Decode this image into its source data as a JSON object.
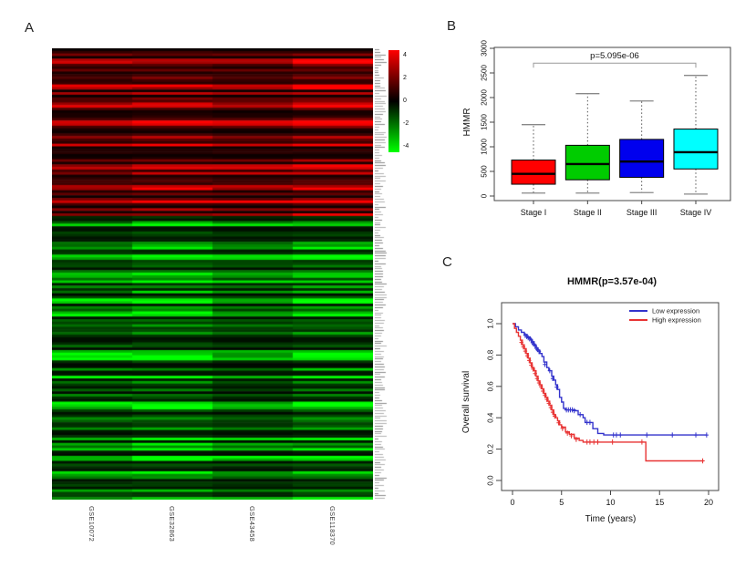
{
  "panels": {
    "a": "A",
    "b": "B",
    "c": "C"
  },
  "chart_data": [
    {
      "type": "heatmap",
      "panel": "A",
      "columns": [
        "GSE10072",
        "GSE32863",
        "GSE43458",
        "GSE118370"
      ],
      "colorscale": {
        "min": -4,
        "max": 4,
        "min_color": "#00ff00",
        "mid_color": "#000000",
        "max_color": "#ff0000",
        "ticks": [
          "4",
          "2",
          "0",
          "-2",
          "-4"
        ]
      },
      "row_labels_note": "illegible",
      "seed": 20231007,
      "blocks": [
        {
          "direction": "up",
          "rows": 65,
          "column_brightness": [
            0.82,
            1.02,
            0.88,
            1.18
          ]
        },
        {
          "direction": "down",
          "rows": 110,
          "column_brightness": [
            0.95,
            1.18,
            0.88,
            1.12
          ]
        }
      ]
    },
    {
      "type": "box",
      "panel": "B",
      "ylabel": "HMMR",
      "ylim": [
        0,
        3000
      ],
      "yticks": [
        0,
        500,
        1000,
        1500,
        2000,
        2500,
        3000
      ],
      "categories": [
        "Stage I",
        "Stage II",
        "Stage III",
        "Stage IV"
      ],
      "boxes": [
        {
          "category": "Stage I",
          "color": "#ff0000",
          "whisker_low": 60,
          "q1": 240,
          "median": 450,
          "q3": 730,
          "whisker_high": 1450
        },
        {
          "category": "Stage II",
          "color": "#00cc00",
          "whisker_low": 60,
          "q1": 330,
          "median": 650,
          "q3": 1030,
          "whisker_high": 2080
        },
        {
          "category": "Stage III",
          "color": "#0000ee",
          "whisker_low": 70,
          "q1": 380,
          "median": 700,
          "q3": 1150,
          "whisker_high": 1930
        },
        {
          "category": "Stage IV",
          "color": "#00ffff",
          "whisker_low": 40,
          "q1": 550,
          "median": 890,
          "q3": 1360,
          "whisker_high": 2450
        }
      ],
      "annotation": {
        "text": "p=5.095e-06",
        "bar_y": 2700,
        "from_index": 0,
        "to_index": 3
      }
    },
    {
      "type": "line",
      "subtype": "kaplan_meier",
      "panel": "C",
      "title": "HMMR(p=3.57e-04)",
      "xlabel": "Time (years)",
      "ylabel": "Overall survival",
      "xlim": [
        0,
        20
      ],
      "ylim": [
        0,
        1
      ],
      "xticks": [
        0,
        5,
        10,
        15,
        20
      ],
      "yticks": [
        "0.0",
        "0.2",
        "0.4",
        "0.6",
        "0.8",
        "1.0"
      ],
      "legend": [
        {
          "label": "Low expression",
          "color": "#3333cc"
        },
        {
          "label": "High expression",
          "color": "#e83333"
        }
      ],
      "series": [
        {
          "name": "Low expression",
          "color": "#3333cc",
          "steps": [
            [
              0,
              1.0
            ],
            [
              0.3,
              0.98
            ],
            [
              0.6,
              0.96
            ],
            [
              0.9,
              0.945
            ],
            [
              1.2,
              0.93
            ],
            [
              1.5,
              0.915
            ],
            [
              1.8,
              0.9
            ],
            [
              2.0,
              0.885
            ],
            [
              2.2,
              0.865
            ],
            [
              2.4,
              0.845
            ],
            [
              2.6,
              0.83
            ],
            [
              2.8,
              0.81
            ],
            [
              3.0,
              0.79
            ],
            [
              3.2,
              0.755
            ],
            [
              3.5,
              0.72
            ],
            [
              3.7,
              0.7
            ],
            [
              4.0,
              0.665
            ],
            [
              4.2,
              0.64
            ],
            [
              4.4,
              0.61
            ],
            [
              4.6,
              0.58
            ],
            [
              4.8,
              0.53
            ],
            [
              5.0,
              0.5
            ],
            [
              5.2,
              0.46
            ],
            [
              5.4,
              0.45
            ],
            [
              6.4,
              0.445
            ],
            [
              6.7,
              0.42
            ],
            [
              7.2,
              0.4
            ],
            [
              7.4,
              0.37
            ],
            [
              8.2,
              0.33
            ],
            [
              8.7,
              0.3
            ],
            [
              9.3,
              0.29
            ],
            [
              19.8,
              0.29
            ]
          ],
          "censors": [
            [
              1.3,
              0.925
            ],
            [
              1.45,
              0.918
            ],
            [
              1.6,
              0.91
            ],
            [
              1.75,
              0.903
            ],
            [
              1.9,
              0.895
            ],
            [
              2.05,
              0.878
            ],
            [
              2.15,
              0.87
            ],
            [
              2.3,
              0.858
            ],
            [
              2.45,
              0.842
            ],
            [
              2.55,
              0.835
            ],
            [
              2.7,
              0.822
            ],
            [
              3.3,
              0.74
            ],
            [
              3.8,
              0.7
            ],
            [
              4.1,
              0.65
            ],
            [
              4.5,
              0.595
            ],
            [
              5.5,
              0.45
            ],
            [
              5.7,
              0.45
            ],
            [
              5.9,
              0.45
            ],
            [
              6.1,
              0.45
            ],
            [
              6.3,
              0.445
            ],
            [
              6.9,
              0.42
            ],
            [
              7.6,
              0.37
            ],
            [
              7.9,
              0.37
            ],
            [
              10.3,
              0.29
            ],
            [
              10.6,
              0.29
            ],
            [
              11.0,
              0.29
            ],
            [
              13.7,
              0.29
            ],
            [
              16.3,
              0.29
            ],
            [
              18.7,
              0.29
            ],
            [
              19.8,
              0.29
            ]
          ]
        },
        {
          "name": "High expression",
          "color": "#e83333",
          "steps": [
            [
              0,
              1.0
            ],
            [
              0.2,
              0.97
            ],
            [
              0.4,
              0.945
            ],
            [
              0.6,
              0.92
            ],
            [
              0.8,
              0.895
            ],
            [
              1.0,
              0.865
            ],
            [
              1.2,
              0.84
            ],
            [
              1.4,
              0.81
            ],
            [
              1.6,
              0.78
            ],
            [
              1.8,
              0.75
            ],
            [
              2.0,
              0.72
            ],
            [
              2.2,
              0.7
            ],
            [
              2.4,
              0.665
            ],
            [
              2.6,
              0.635
            ],
            [
              2.8,
              0.61
            ],
            [
              3.0,
              0.585
            ],
            [
              3.2,
              0.555
            ],
            [
              3.4,
              0.53
            ],
            [
              3.6,
              0.505
            ],
            [
              3.8,
              0.48
            ],
            [
              4.0,
              0.45
            ],
            [
              4.2,
              0.42
            ],
            [
              4.4,
              0.4
            ],
            [
              4.6,
              0.38
            ],
            [
              4.8,
              0.355
            ],
            [
              5.0,
              0.34
            ],
            [
              5.4,
              0.31
            ],
            [
              5.8,
              0.295
            ],
            [
              6.3,
              0.27
            ],
            [
              6.8,
              0.255
            ],
            [
              7.2,
              0.245
            ],
            [
              13.6,
              0.245
            ],
            [
              13.6,
              0.125
            ],
            [
              19.5,
              0.125
            ]
          ],
          "censors": [
            [
              0.9,
              0.88
            ],
            [
              1.1,
              0.852
            ],
            [
              1.3,
              0.825
            ],
            [
              1.5,
              0.795
            ],
            [
              1.7,
              0.765
            ],
            [
              1.9,
              0.735
            ],
            [
              2.1,
              0.71
            ],
            [
              2.3,
              0.682
            ],
            [
              2.5,
              0.65
            ],
            [
              2.7,
              0.622
            ],
            [
              2.9,
              0.598
            ],
            [
              3.1,
              0.57
            ],
            [
              3.3,
              0.542
            ],
            [
              3.5,
              0.517
            ],
            [
              3.7,
              0.492
            ],
            [
              3.9,
              0.465
            ],
            [
              4.1,
              0.435
            ],
            [
              4.3,
              0.41
            ],
            [
              4.7,
              0.368
            ],
            [
              5.1,
              0.332
            ],
            [
              5.6,
              0.302
            ],
            [
              6.0,
              0.285
            ],
            [
              6.5,
              0.262
            ],
            [
              7.6,
              0.245
            ],
            [
              7.9,
              0.245
            ],
            [
              8.3,
              0.245
            ],
            [
              8.7,
              0.245
            ],
            [
              10.2,
              0.245
            ],
            [
              13.2,
              0.245
            ],
            [
              19.4,
              0.125
            ]
          ]
        }
      ]
    }
  ]
}
